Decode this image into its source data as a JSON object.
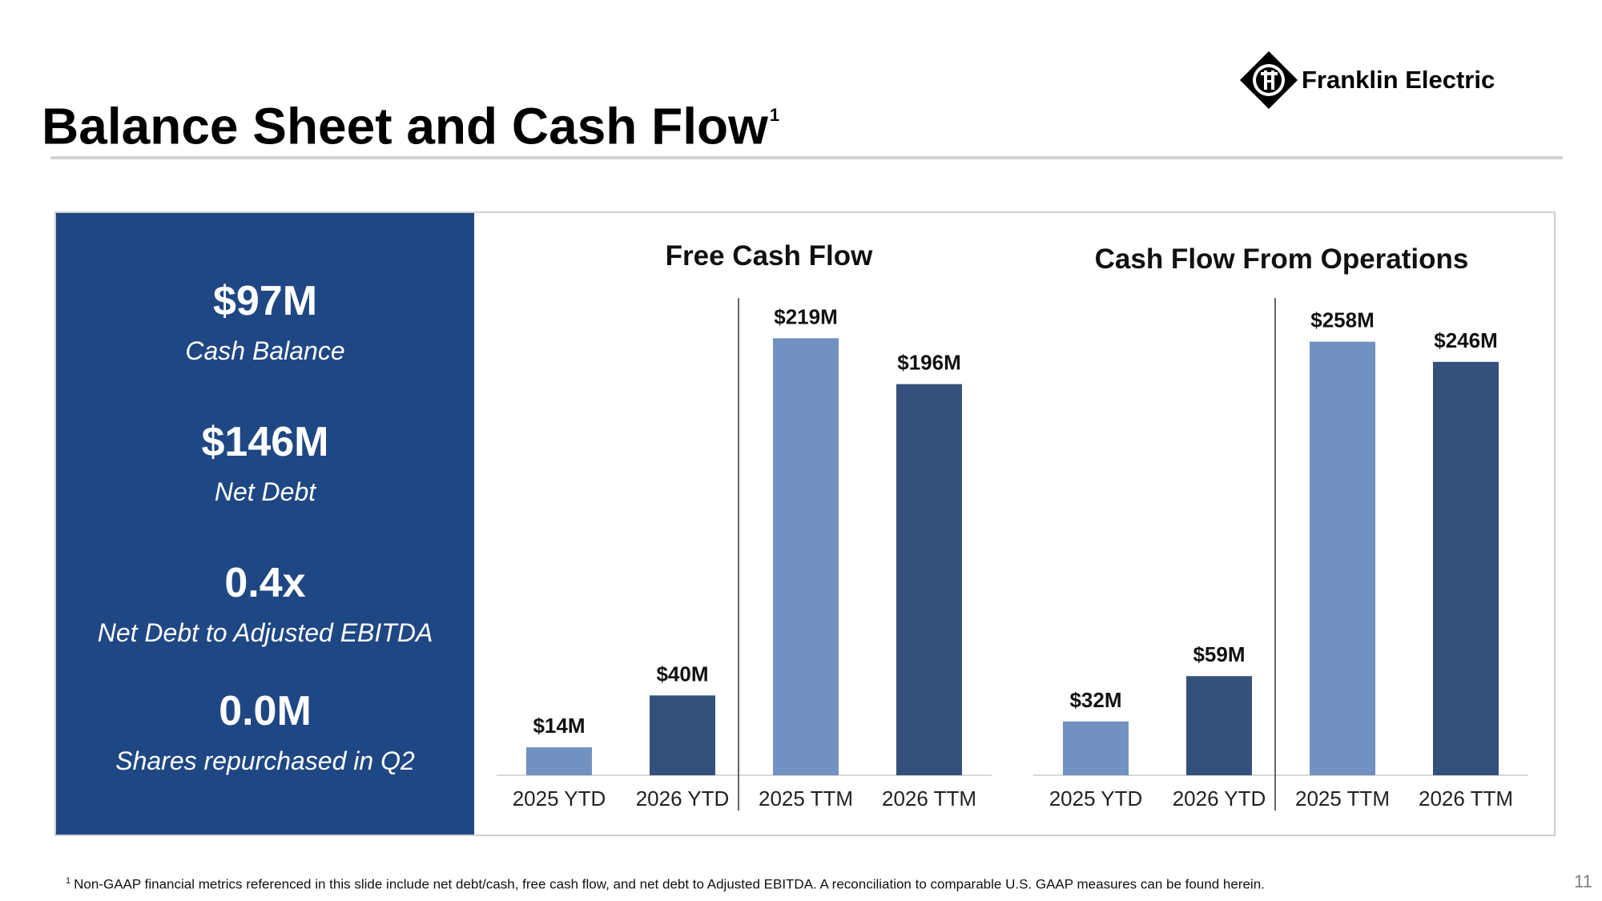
{
  "slide": {
    "title": "Balance Sheet and Cash Flow",
    "title_superscript": "1",
    "logo_text": "Franklin Electric",
    "page_number": "11",
    "footnote_marker": "1",
    "footnote": "Non-GAAP financial metrics referenced in this slide include net debt/cash, free cash flow, and net debt to Adjusted EBITDA. A reconciliation to comparable U.S. GAAP measures can be found herein.",
    "colors": {
      "sidebar": "#1f4784",
      "light_bar": "#7391c1",
      "dark_bar": "#35507a"
    }
  },
  "metrics": [
    {
      "value": "$97M",
      "label": "Cash Balance"
    },
    {
      "value": "$146M",
      "label": "Net Debt"
    },
    {
      "value": "0.4x",
      "label": "Net Debt to Adjusted EBITDA"
    },
    {
      "value": "0.0M",
      "label": "Shares repurchased in Q2"
    }
  ],
  "chart_data": [
    {
      "type": "bar",
      "title": "Free Cash Flow",
      "categories": [
        "2025 YTD",
        "2026 YTD",
        "2025 TTM",
        "2026 TTM"
      ],
      "values": [
        14,
        40,
        219,
        196
      ],
      "data_labels": [
        "$14M",
        "$40M",
        "$219M",
        "$196M"
      ],
      "unit": "$M",
      "ylim": [
        0,
        240
      ],
      "grid": false,
      "divider_between": [
        "2026 YTD",
        "2025 TTM"
      ]
    },
    {
      "type": "bar",
      "title": "Cash Flow From Operations",
      "categories": [
        "2025 YTD",
        "2026 YTD",
        "2025 TTM",
        "2026 TTM"
      ],
      "values": [
        32,
        59,
        258,
        246
      ],
      "data_labels": [
        "$32M",
        "$59M",
        "$258M",
        "$246M"
      ],
      "unit": "$M",
      "ylim": [
        0,
        285
      ],
      "grid": false,
      "divider_between": [
        "2026 YTD",
        "2025 TTM"
      ]
    }
  ]
}
